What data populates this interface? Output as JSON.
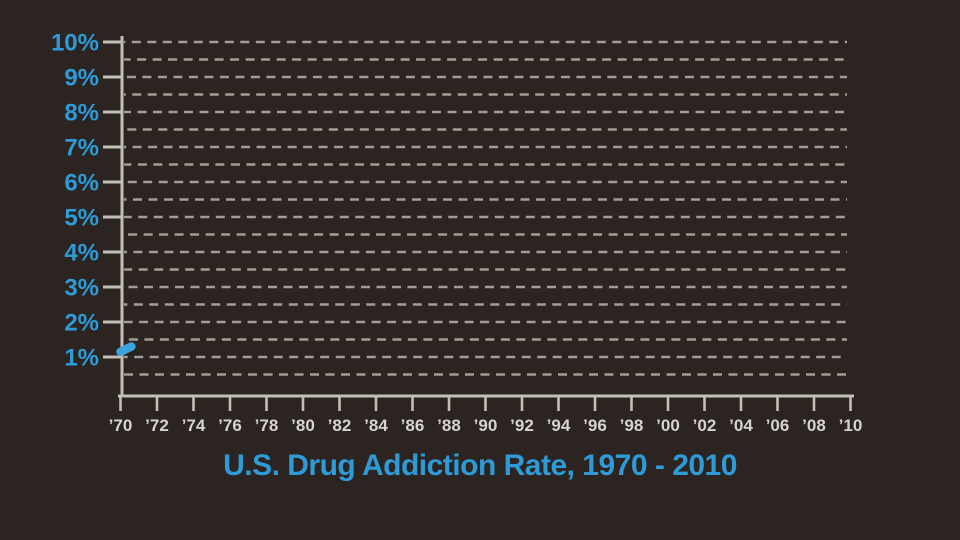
{
  "chart_data": {
    "type": "line",
    "title": "U.S. Drug Addiction Rate, 1970 - 2010",
    "xlabel": "",
    "ylabel": "",
    "xlim": [
      1970,
      2010
    ],
    "ylim": [
      0,
      10
    ],
    "x_ticks": [
      1970,
      1972,
      1974,
      1976,
      1978,
      1980,
      1982,
      1984,
      1986,
      1988,
      1990,
      1992,
      1994,
      1996,
      1998,
      2000,
      2002,
      2004,
      2006,
      2008,
      2010
    ],
    "x_tick_labels": [
      "’70",
      "’72",
      "’74",
      "’76",
      "’78",
      "’80",
      "’82",
      "’84",
      "’86",
      "’88",
      "’90",
      "’92",
      "’94",
      "’96",
      "’98",
      "’00",
      "’02",
      "’04",
      "’06",
      "’08",
      "’10"
    ],
    "y_ticks": [
      1,
      2,
      3,
      4,
      5,
      6,
      7,
      8,
      9,
      10
    ],
    "y_tick_labels": [
      "1%",
      "2%",
      "3%",
      "4%",
      "5%",
      "6%",
      "7%",
      "8%",
      "9%",
      "10%"
    ],
    "grid": "horizontal dashed lines every 0.5%",
    "grid_step": 0.5,
    "legend": "none",
    "series": [
      {
        "name": "U.S. drug addiction rate",
        "points": [
          {
            "x": 1970.0,
            "y": 1.15
          },
          {
            "x": 1970.6,
            "y": 1.3
          }
        ]
      }
    ]
  },
  "colors": {
    "background": "#2b2420",
    "accent_blue": "#2e9bd8",
    "line_blue": "#3ca3df",
    "axis": "#c2bfb7",
    "gridline": "#a29e95",
    "x_label": "#d6d4ce"
  }
}
